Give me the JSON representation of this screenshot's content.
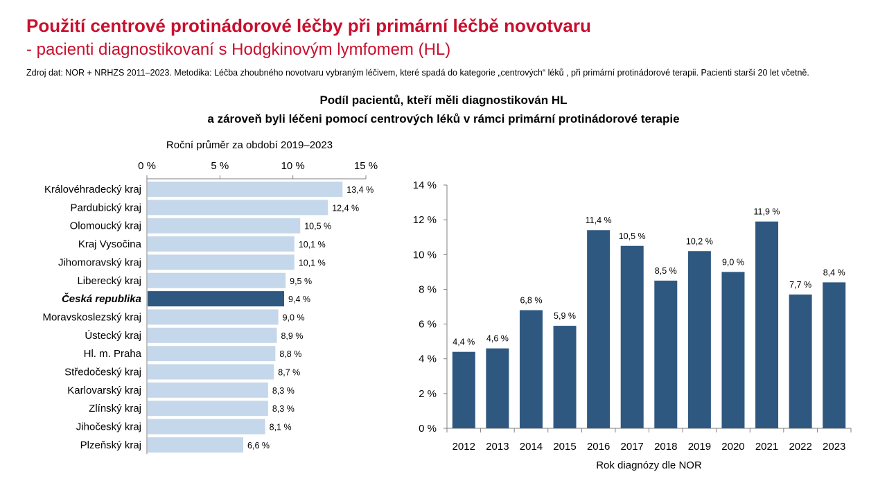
{
  "header": {
    "title": "Použití centrové protinádorové léčby při primární léčbě novotvaru",
    "subtitle": "- pacienti diagnostikovaní s Hodgkinovým lymfomem (HL)",
    "source_note": "Zdroj dat: NOR + NRHZS 2011–2023. Metodika: Léčba zhoubného novotvaru vybraným léčivem, které spadá do kategorie „centrových“ léků , při primární protinádorové terapii. Pacienti starší 20 let včetně."
  },
  "chart_heading": {
    "line1": "Podíl pacientů, kteří měli diagnostikován HL",
    "line2": "a zároveň byli léčeni pomocí centrových léků v rámci primární protinádorové terapie"
  },
  "colors": {
    "title": "#c8102e",
    "bar_light": "#c5d7ea",
    "bar_dark": "#2f5880"
  },
  "chart_data": [
    {
      "type": "bar",
      "orientation": "horizontal",
      "xlabel": "Roční průměr za období 2019–2023",
      "xlim": [
        0,
        15
      ],
      "xticks": [
        "0 %",
        "5 %",
        "10 %",
        "15 %"
      ],
      "highlight": "Česká republika",
      "categories": [
        "Královéhradecký kraj",
        "Pardubický kraj",
        "Olomoucký kraj",
        "Kraj Vysočina",
        "Jihomoravský kraj",
        "Liberecký kraj",
        "Česká republika",
        "Moravskoslezský kraj",
        "Ústecký kraj",
        "Hl. m. Praha",
        "Středočeský kraj",
        "Karlovarský kraj",
        "Zlínský kraj",
        "Jihočeský kraj",
        "Plzeňský kraj"
      ],
      "values": [
        13.4,
        12.4,
        10.5,
        10.1,
        10.1,
        9.5,
        9.4,
        9.0,
        8.9,
        8.8,
        8.7,
        8.3,
        8.3,
        8.1,
        6.6
      ],
      "labels": [
        "13,4 %",
        "12,4 %",
        "10,5 %",
        "10,1 %",
        "10,1 %",
        "9,5 %",
        "9,4 %",
        "9,0 %",
        "8,9 %",
        "8,8 %",
        "8,7 %",
        "8,3 %",
        "8,3 %",
        "8,1 %",
        "6,6 %"
      ]
    },
    {
      "type": "bar",
      "orientation": "vertical",
      "xlabel": "Rok diagnózy dle NOR",
      "ylim": [
        0,
        14
      ],
      "yticks": [
        "0 %",
        "2 %",
        "4 %",
        "6 %",
        "8 %",
        "10 %",
        "12 %",
        "14 %"
      ],
      "categories": [
        "2012",
        "2013",
        "2014",
        "2015",
        "2016",
        "2017",
        "2018",
        "2019",
        "2020",
        "2021",
        "2022",
        "2023"
      ],
      "values": [
        4.4,
        4.6,
        6.8,
        5.9,
        11.4,
        10.5,
        8.5,
        10.2,
        9.0,
        11.9,
        7.7,
        8.4
      ],
      "labels": [
        "4,4 %",
        "4,6 %",
        "6,8 %",
        "5,9 %",
        "11,4 %",
        "10,5 %",
        "8,5 %",
        "10,2 %",
        "9,0 %",
        "11,9 %",
        "7,7 %",
        "8,4 %"
      ]
    }
  ]
}
